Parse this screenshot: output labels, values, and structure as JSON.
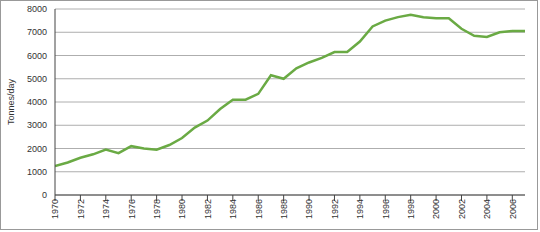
{
  "chart_data": {
    "type": "line",
    "y_label": "Tonnes/day",
    "x": [
      1970,
      1971,
      1972,
      1973,
      1974,
      1975,
      1976,
      1977,
      1978,
      1979,
      1980,
      1981,
      1982,
      1983,
      1984,
      1985,
      1986,
      1987,
      1988,
      1989,
      1990,
      1991,
      1992,
      1993,
      1994,
      1995,
      1996,
      1997,
      1998,
      1999,
      2000,
      2001,
      2002,
      2003,
      2004,
      2005,
      2006,
      2007
    ],
    "values": [
      1250,
      1400,
      1600,
      1750,
      1950,
      1800,
      2100,
      2000,
      1950,
      2150,
      2450,
      2900,
      3200,
      3700,
      4100,
      4100,
      4350,
      5150,
      5000,
      5450,
      5700,
      5900,
      6150,
      6150,
      6600,
      7250,
      7500,
      7650,
      7750,
      7650,
      7600,
      7600,
      7150,
      6850,
      6800,
      7000,
      7050,
      7050
    ],
    "color": "#6aaa44",
    "xlim": [
      1970,
      2007
    ],
    "ylim": [
      0,
      8000
    ],
    "xticks": [
      1970,
      1972,
      1974,
      1976,
      1978,
      1980,
      1982,
      1984,
      1986,
      1988,
      1990,
      1992,
      1994,
      1996,
      1998,
      2000,
      2002,
      2004,
      2006
    ],
    "yticks": [
      0,
      1000,
      2000,
      3000,
      4000,
      5000,
      6000,
      7000,
      8000
    ],
    "grid": true
  }
}
